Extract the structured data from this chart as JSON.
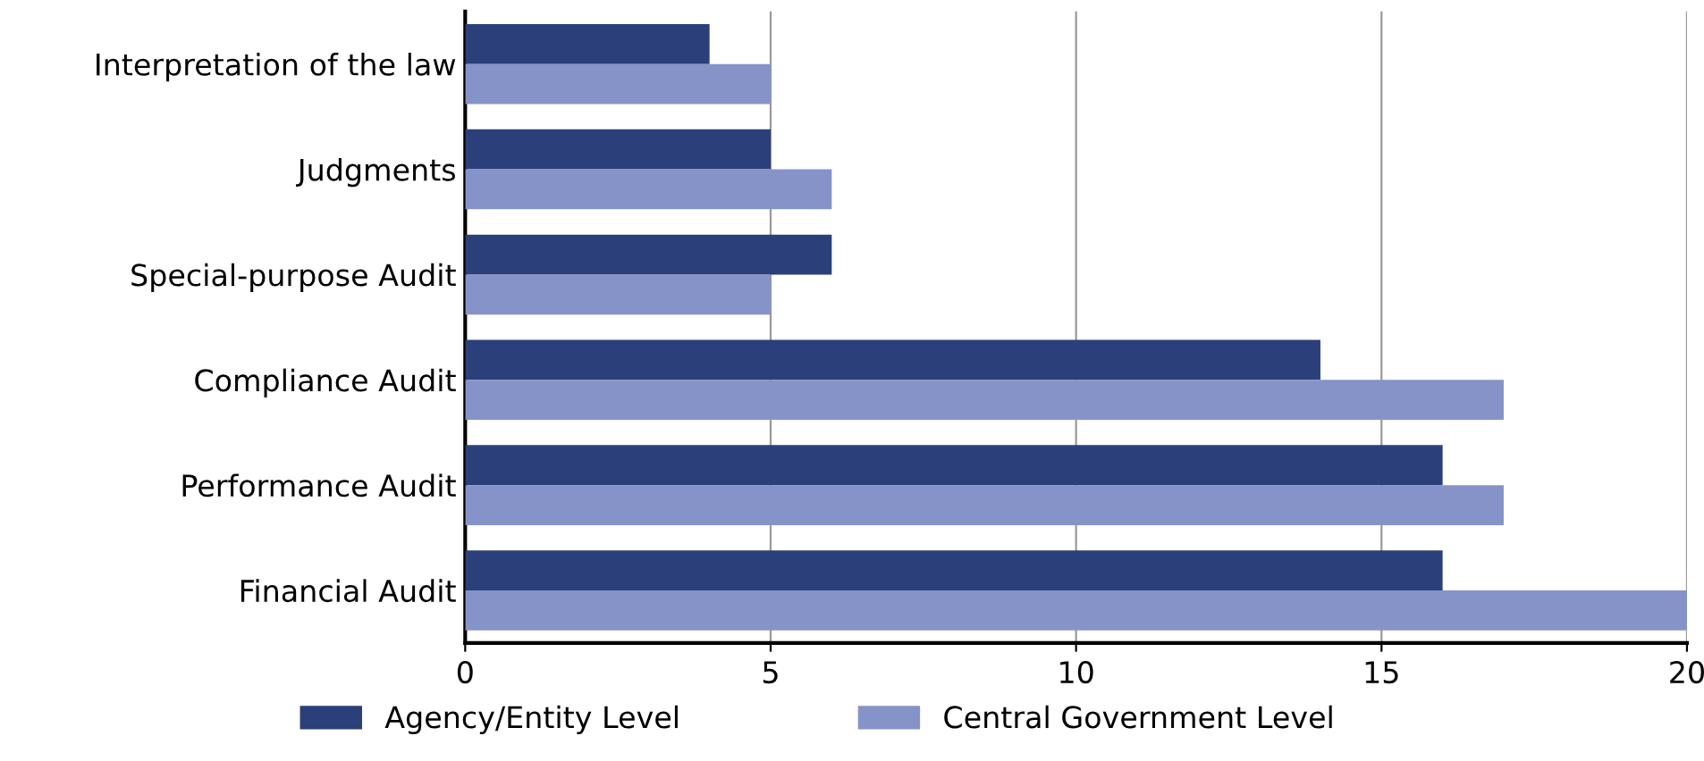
{
  "chart_data": {
    "type": "bar",
    "orientation": "horizontal",
    "categories": [
      "Interpretation of the law",
      "Judgments",
      "Special-purpose Audit",
      "Compliance Audit",
      "Performance Audit",
      "Financial Audit"
    ],
    "series": [
      {
        "name": "Agency/Entity Level",
        "color": "#2b3f7a",
        "values": [
          4,
          5,
          6,
          14,
          16,
          16
        ]
      },
      {
        "name": "Central Government Level",
        "color": "#8593c9",
        "values": [
          5,
          6,
          5,
          17,
          17,
          20
        ]
      }
    ],
    "xlim": [
      0,
      20
    ],
    "xticks": [
      0,
      5,
      10,
      15,
      20
    ],
    "grid": "x",
    "legend": "bottom"
  }
}
